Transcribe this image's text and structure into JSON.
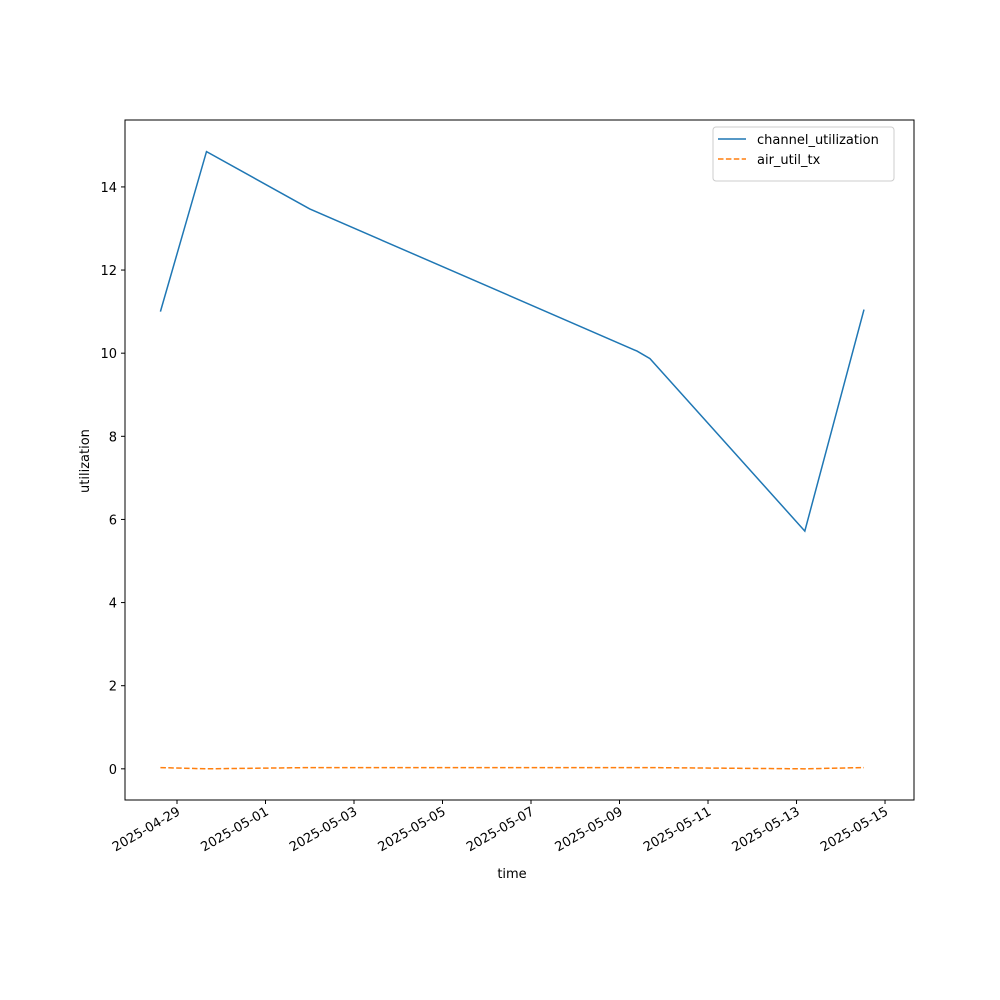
{
  "chart_data": {
    "type": "line",
    "x_label": "time",
    "y_label": "utilization",
    "x": [
      "2025-04-28T15:00",
      "2025-04-29T16:00",
      "2025-05-02T00:00",
      "2025-05-09T09:30",
      "2025-05-09T16:30",
      "2025-05-13T04:30",
      "2025-05-14T12:36"
    ],
    "series": [
      {
        "name": "channel_utilization",
        "color": "#1f77b4",
        "dash": "solid",
        "values": [
          11.0,
          14.85,
          13.47,
          10.05,
          9.87,
          5.72,
          11.05
        ]
      },
      {
        "name": "air_util_tx",
        "color": "#ff7f0e",
        "dash": "dashed",
        "values": [
          0.03,
          0.0,
          0.03,
          0.03,
          0.03,
          0.0,
          0.03
        ]
      }
    ],
    "xlim": [
      "2025-04-27T19:48",
      "2025-05-15T15:43"
    ],
    "xticks": [
      "2025-04-29",
      "2025-05-01",
      "2025-05-03",
      "2025-05-05",
      "2025-05-07",
      "2025-05-09",
      "2025-05-11",
      "2025-05-13",
      "2025-05-15"
    ],
    "ylim": [
      -0.75,
      15.61
    ],
    "yticks": [
      0,
      2,
      4,
      6,
      8,
      10,
      12,
      14
    ],
    "grid": false,
    "legend": "upper right"
  }
}
